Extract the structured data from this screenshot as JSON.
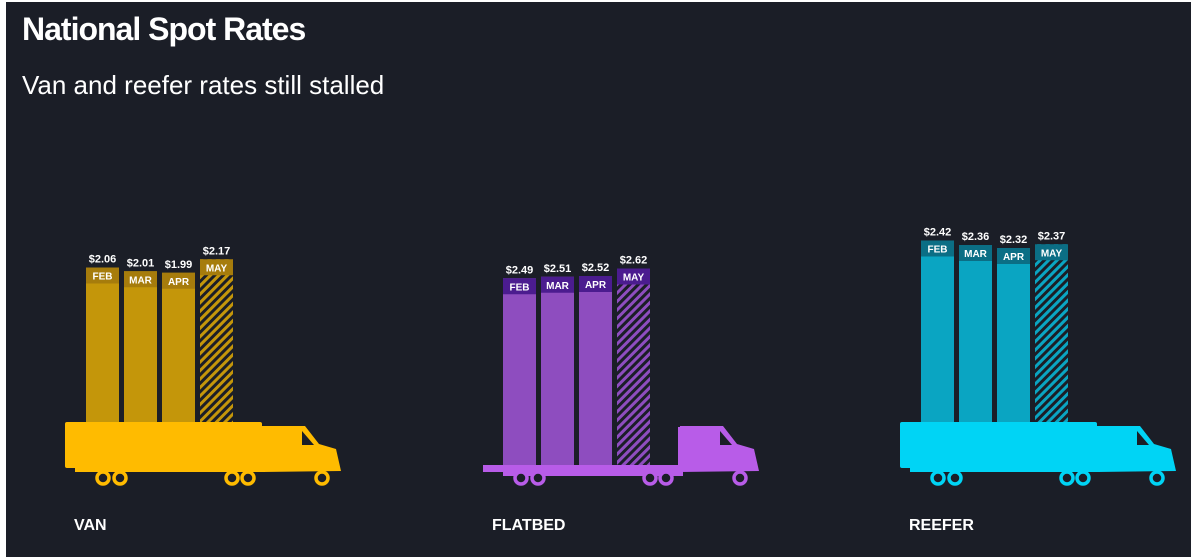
{
  "header": {
    "title": "National Spot Rates",
    "subtitle": "Van and reefer rates still stalled"
  },
  "chart_data": [
    {
      "type": "bar",
      "title": "VAN",
      "categories": [
        "FEB",
        "MAR",
        "APR",
        "MAY"
      ],
      "values": [
        2.06,
        2.01,
        1.99,
        2.17
      ],
      "value_labels": [
        "$2.06",
        "$2.01",
        "$1.99",
        "$2.17"
      ],
      "color": "#c4960a"
    },
    {
      "type": "bar",
      "title": "FLATBED",
      "categories": [
        "FEB",
        "MAR",
        "APR",
        "MAY"
      ],
      "values": [
        2.49,
        2.51,
        2.52,
        2.62
      ],
      "value_labels": [
        "$2.49",
        "$2.51",
        "$2.52",
        "$2.62"
      ],
      "color": "#8e4dbf"
    },
    {
      "type": "bar",
      "title": "REEFER",
      "categories": [
        "FEB",
        "MAR",
        "APR",
        "MAY"
      ],
      "values": [
        2.42,
        2.36,
        2.32,
        2.37
      ],
      "value_labels": [
        "$2.42",
        "$2.36",
        "$2.32",
        "$2.37"
      ],
      "color": "#0aa5c2"
    }
  ]
}
